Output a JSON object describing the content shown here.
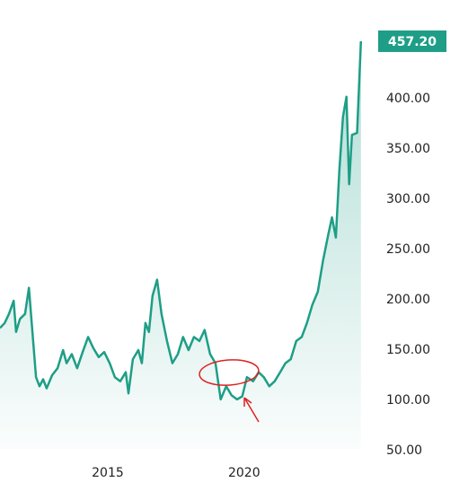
{
  "chart_data": {
    "type": "line",
    "color": "#1e9e86",
    "x": [
      2011.05,
      2011.22,
      2011.38,
      2011.55,
      2011.64,
      2011.78,
      2011.97,
      2012.11,
      2012.24,
      2012.37,
      2012.5,
      2012.63,
      2012.76,
      2012.96,
      2013.16,
      2013.36,
      2013.49,
      2013.68,
      2013.88,
      2014.08,
      2014.28,
      2014.47,
      2014.67,
      2014.87,
      2015.07,
      2015.26,
      2015.46,
      2015.66,
      2015.76,
      2015.92,
      2016.12,
      2016.25,
      2016.38,
      2016.51,
      2016.64,
      2016.81,
      2016.97,
      2017.17,
      2017.37,
      2017.57,
      2017.76,
      2017.96,
      2018.16,
      2018.36,
      2018.55,
      2018.75,
      2018.95,
      2019.14,
      2019.34,
      2019.54,
      2019.74,
      2019.93,
      2020.1,
      2020.33,
      2020.53,
      2020.72,
      2020.92,
      2021.12,
      2021.32,
      2021.51,
      2021.71,
      2021.91,
      2022.11,
      2022.3,
      2022.5,
      2022.7,
      2022.89,
      2023.09,
      2023.22,
      2023.36,
      2023.49,
      2023.62,
      2023.75,
      2023.85,
      2023.95,
      2024.14,
      2024.28
    ],
    "values": [
      172,
      177,
      186,
      199,
      168,
      181,
      186,
      212,
      168,
      123,
      114,
      121,
      112,
      125,
      132,
      150,
      137,
      146,
      132,
      148,
      163,
      152,
      143,
      148,
      137,
      123,
      119,
      128,
      107,
      141,
      150,
      137,
      177,
      168,
      204,
      220,
      186,
      159,
      137,
      146,
      163,
      150,
      163,
      159,
      170,
      146,
      137,
      101,
      114,
      105,
      101,
      104,
      123,
      119,
      128,
      123,
      114,
      119,
      128,
      137,
      141,
      159,
      163,
      177,
      195,
      208,
      239,
      266,
      282,
      262,
      329,
      382,
      402,
      315,
      364,
      366,
      457.2
    ],
    "last_price_label": "457.20",
    "xlim": [
      2011.05,
      2024.55
    ],
    "xticks": [
      2015,
      2020
    ],
    "ylim": [
      29.46,
      498.21
    ],
    "yticks": [
      {
        "value": 50,
        "label": "50.00"
      },
      {
        "value": 100,
        "label": "100.00"
      },
      {
        "value": 150,
        "label": "150.00"
      },
      {
        "value": 200,
        "label": "200.00"
      },
      {
        "value": 250,
        "label": "250.00"
      },
      {
        "value": 300,
        "label": "300.00"
      },
      {
        "value": 350,
        "label": "350.00"
      },
      {
        "value": 400,
        "label": "400.00"
      }
    ]
  }
}
